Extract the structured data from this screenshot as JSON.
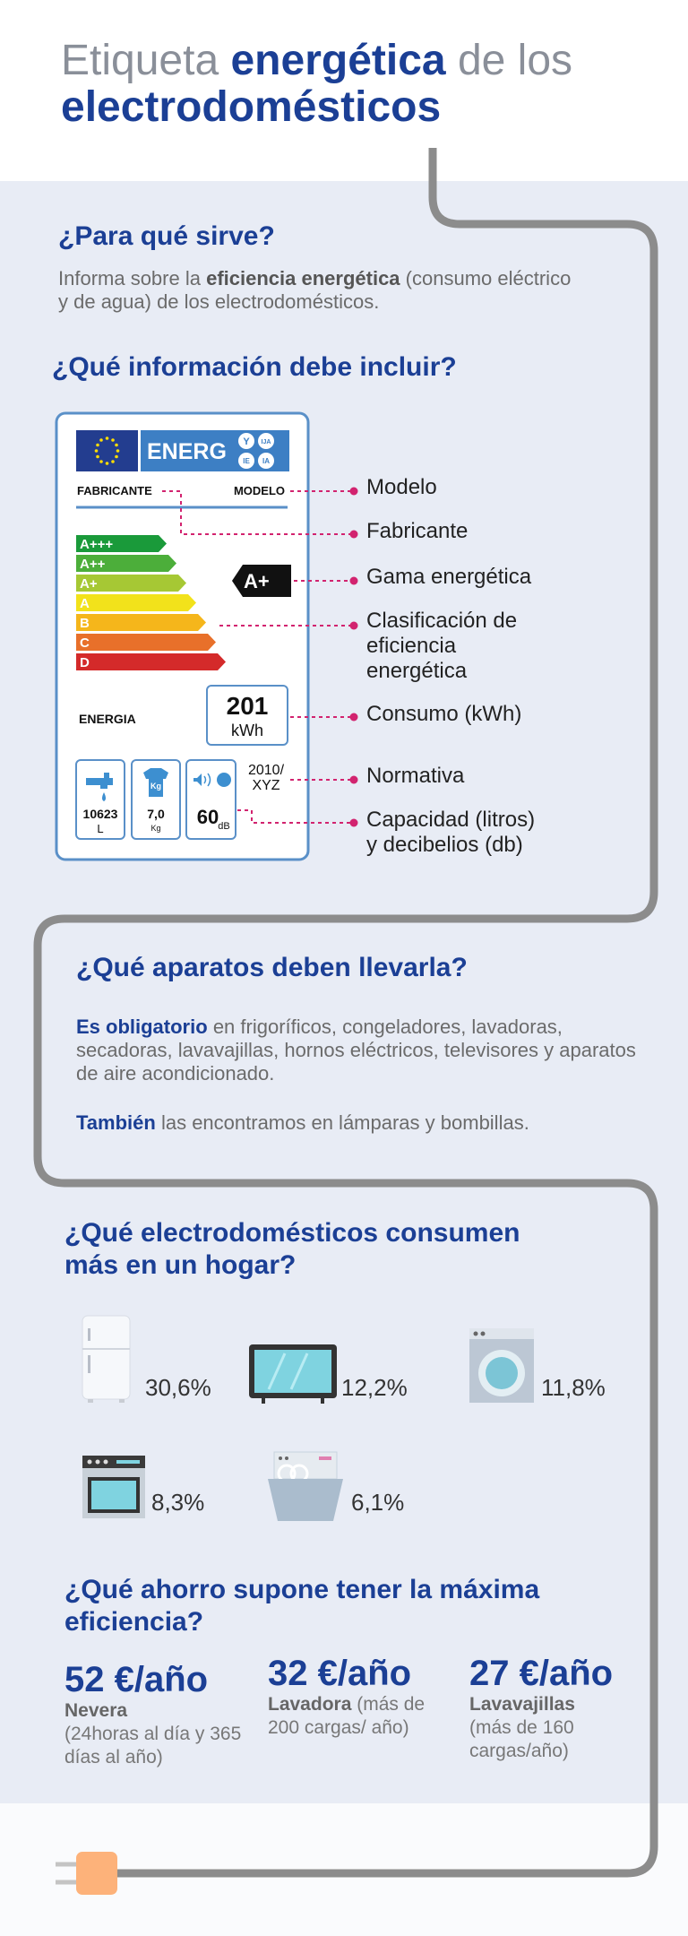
{
  "header": {
    "title_light_1": "Etiqueta",
    "title_bold_1": "energética",
    "title_light_2": "de los",
    "title_bold_2": "electrodomésticos"
  },
  "purpose": {
    "heading": "¿Para qué sirve?",
    "text_before": "Informa sobre la",
    "text_bold": "eficiencia energética",
    "text_after": "(consumo eléctrico y de agua) de los electrodomésticos."
  },
  "label_info": {
    "heading": "¿Qué información debe incluir?",
    "label": {
      "energ": "ENERG",
      "badges": [
        "Y",
        "IJA",
        "IE",
        "IA"
      ],
      "manufacturer": "FABRICANTE",
      "model": "MODELO",
      "classes": [
        "A+++",
        "A++",
        "A+",
        "A",
        "B",
        "C",
        "D"
      ],
      "rating": "A+",
      "energy": "ENERGIA",
      "consumption": "201",
      "consumption_unit": "kWh",
      "water": "10623",
      "water_unit": "L",
      "icon_capacity": "Kg",
      "capacity": "7,0",
      "capacity_unit": "Kg",
      "noise": "60",
      "noise_unit": "dB",
      "regulation": [
        "2010/",
        "XYZ"
      ]
    },
    "callouts": [
      [
        "Modelo"
      ],
      [
        "Fabricante"
      ],
      [
        "Gama energética"
      ],
      [
        "Clasificación de",
        "eficiencia",
        "energética"
      ],
      [
        "Consumo (kWh)"
      ],
      [
        "Normativa"
      ],
      [
        "Capacidad (litros)",
        "y decibelios (db)"
      ]
    ]
  },
  "appliances": {
    "heading": "¿Qué aparatos deben llevarla?",
    "p1_bold": "Es obligatorio",
    "p1_text": "en frigoríficos, congeladores, lavadoras, secadoras, lavavajillas, hornos eléctricos, televisores y aparatos de aire acondicionado.",
    "p2_bold": "También",
    "p2_text": "las encontramos en lámparas y bombillas."
  },
  "consumption": {
    "heading_lines": [
      "¿Qué electrodomésticos consumen",
      "más en un hogar?"
    ],
    "items": [
      "30,6%",
      "12,2%",
      "11,8%",
      "8,3%",
      "6,1%"
    ]
  },
  "savings": {
    "heading_lines": [
      "¿Qué ahorro supone tener la máxima",
      "eficiencia?"
    ],
    "items": [
      {
        "amount": "52 €/año",
        "name": "Nevera",
        "detail": "(24horas al día y 365 días al año)"
      },
      {
        "amount": "32 €/año",
        "name": "Lavadora",
        "detail": "(más de 200 cargas/ año)"
      },
      {
        "amount": "27 €/año",
        "name": "Lavavajillas",
        "detail": "(más de 160 cargas/año)"
      }
    ]
  }
}
